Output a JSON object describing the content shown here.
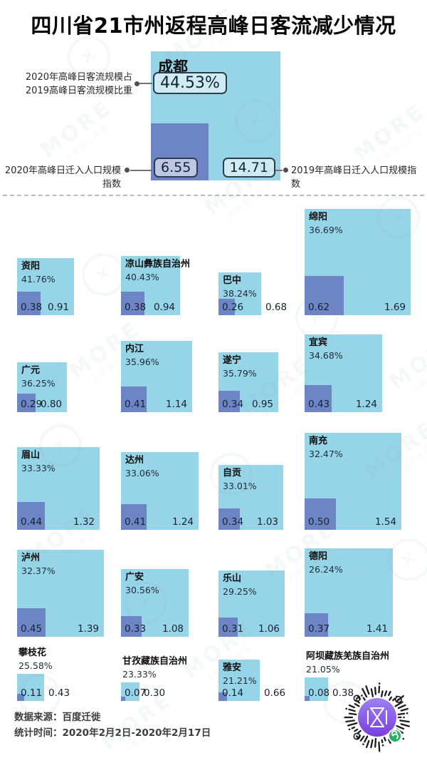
{
  "title": "四川省21市州返程高峰日客流减少情况",
  "colors": {
    "light_blue": "#96d5e7",
    "dark_blue": "#6d84c5",
    "number_text": "#16222e"
  },
  "annotations": {
    "share_line1": "2020年高峰日客流规模占",
    "share_line2": "2019高峰日客流规模比重",
    "idx_2020": "2020年高峰日迁入人口规模指数",
    "idx_2019": "2019年高峰日迁入人口规模指数"
  },
  "hero": {
    "name": "成都",
    "share": "44.53%",
    "idx_2020": "6.55",
    "idx_2019": "14.71"
  },
  "cities": [
    {
      "name": "资阳",
      "share": "41.76%",
      "idx_2020": "0.38",
      "idx_2019": "0.91",
      "col": 0,
      "row": 0
    },
    {
      "name": "凉山彝族自治州",
      "share": "40.43%",
      "idx_2020": "0.38",
      "idx_2019": "0.94",
      "col": 1,
      "row": 0
    },
    {
      "name": "巴中",
      "share": "38.24%",
      "idx_2020": "0.26",
      "idx_2019": "0.68",
      "col": 2,
      "row": 0
    },
    {
      "name": "绵阳",
      "share": "36.69%",
      "idx_2020": "0.62",
      "idx_2019": "1.69",
      "col": 3,
      "row": 0
    },
    {
      "name": "广元",
      "share": "36.25%",
      "idx_2020": "0.29",
      "idx_2019": "0.80",
      "col": 0,
      "row": 1
    },
    {
      "name": "内江",
      "share": "35.96%",
      "idx_2020": "0.41",
      "idx_2019": "1.14",
      "col": 1,
      "row": 1
    },
    {
      "name": "遂宁",
      "share": "35.79%",
      "idx_2020": "0.34",
      "idx_2019": "0.95",
      "col": 2,
      "row": 1
    },
    {
      "name": "宜宾",
      "share": "34.68%",
      "idx_2020": "0.43",
      "idx_2019": "1.24",
      "col": 3,
      "row": 1
    },
    {
      "name": "眉山",
      "share": "33.33%",
      "idx_2020": "0.44",
      "idx_2019": "1.32",
      "col": 0,
      "row": 2
    },
    {
      "name": "达州",
      "share": "33.06%",
      "idx_2020": "0.41",
      "idx_2019": "1.24",
      "col": 1,
      "row": 2
    },
    {
      "name": "自贡",
      "share": "33.01%",
      "idx_2020": "0.34",
      "idx_2019": "1.03",
      "col": 2,
      "row": 2
    },
    {
      "name": "南充",
      "share": "32.47%",
      "idx_2020": "0.50",
      "idx_2019": "1.54",
      "col": 3,
      "row": 2
    },
    {
      "name": "泸州",
      "share": "32.37%",
      "idx_2020": "0.45",
      "idx_2019": "1.39",
      "col": 0,
      "row": 3
    },
    {
      "name": "广安",
      "share": "30.56%",
      "idx_2020": "0.33",
      "idx_2019": "1.08",
      "col": 1,
      "row": 3
    },
    {
      "name": "乐山",
      "share": "29.25%",
      "idx_2020": "0.31",
      "idx_2019": "1.06",
      "col": 2,
      "row": 3
    },
    {
      "name": "德阳",
      "share": "26.24%",
      "idx_2020": "0.37",
      "idx_2019": "1.41",
      "col": 3,
      "row": 3
    },
    {
      "name": "攀枝花",
      "share": "25.58%",
      "idx_2020": "0.11",
      "idx_2019": "0.43",
      "col": 0,
      "row": 4
    },
    {
      "name": "甘孜藏族自治州",
      "share": "23.33%",
      "idx_2020": "0.07",
      "idx_2019": "0.30",
      "col": 1,
      "row": 4
    },
    {
      "name": "雅安",
      "share": "21.21%",
      "idx_2020": "0.14",
      "idx_2019": "0.66",
      "col": 2,
      "row": 4
    },
    {
      "name": "阿坝藏族羌族自治州",
      "share": "21.05%",
      "idx_2020": "0.08",
      "idx_2019": "0.38",
      "col": 3,
      "row": 4
    }
  ],
  "footer": {
    "source_label": "数据来源：",
    "source_value": "百度迁徙",
    "time_label": "统计时间：",
    "time_value": "2020年2月2日-2020年2月17日"
  },
  "watermark": {
    "brand": "MORE",
    "studio": "大数据工作室",
    "ring_glyph": "✕"
  },
  "chart_data": {
    "type": "bar",
    "title": "四川省21市州返程高峰日客流减少情况",
    "categories": [
      "成都",
      "资阳",
      "凉山彝族自治州",
      "巴中",
      "绵阳",
      "广元",
      "内江",
      "遂宁",
      "宜宾",
      "眉山",
      "达州",
      "自贡",
      "南充",
      "泸州",
      "广安",
      "乐山",
      "德阳",
      "攀枝花",
      "甘孜藏族自治州",
      "雅安",
      "阿坝藏族羌族自治州"
    ],
    "series": [
      {
        "name": "2020年高峰日客流规模占2019高峰日客流规模比重(%)",
        "values": [
          44.53,
          41.76,
          40.43,
          38.24,
          36.69,
          36.25,
          35.96,
          35.79,
          34.68,
          33.33,
          33.06,
          33.01,
          32.47,
          32.37,
          30.56,
          29.25,
          26.24,
          25.58,
          23.33,
          21.21,
          21.05
        ]
      },
      {
        "name": "2020年高峰日迁入人口规模指数",
        "values": [
          6.55,
          0.38,
          0.38,
          0.26,
          0.62,
          0.29,
          0.41,
          0.34,
          0.43,
          0.44,
          0.41,
          0.34,
          0.5,
          0.45,
          0.33,
          0.31,
          0.37,
          0.11,
          0.07,
          0.14,
          0.08
        ]
      },
      {
        "name": "2019年高峰日迁入人口规模指数",
        "values": [
          14.71,
          0.91,
          0.94,
          0.68,
          1.69,
          0.8,
          1.14,
          0.95,
          1.24,
          1.32,
          1.24,
          1.03,
          1.54,
          1.39,
          1.08,
          1.06,
          1.41,
          0.43,
          0.3,
          0.66,
          0.38
        ]
      }
    ],
    "legend_position": "none",
    "grid": false,
    "note": "nested squares: outer square area side = 2019 index, inner = 2020 index",
    "source": "百度迁徙",
    "period": "2020年2月2日-2020年2月17日"
  }
}
